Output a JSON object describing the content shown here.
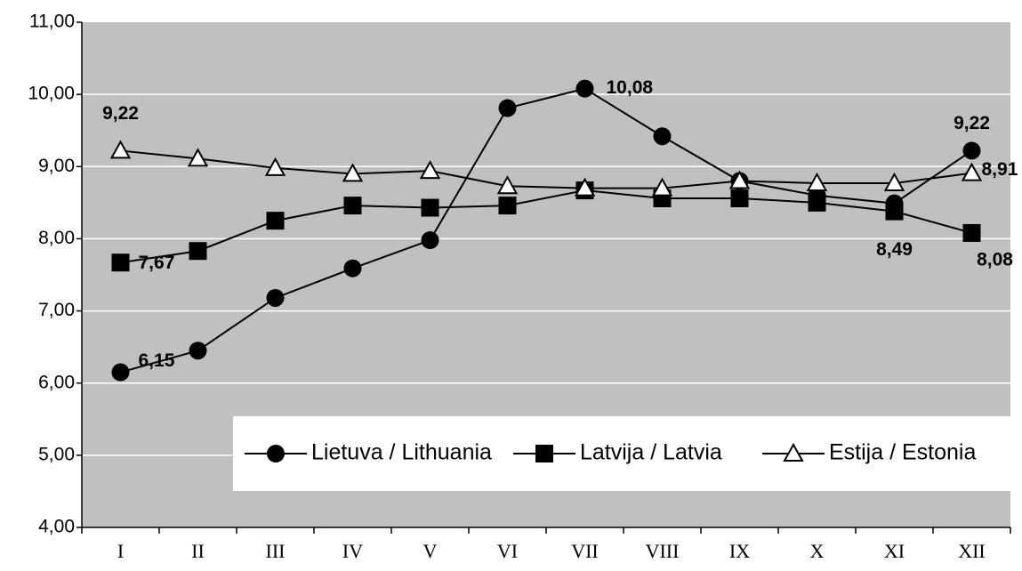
{
  "chart_data": {
    "type": "line",
    "categories": [
      "I",
      "II",
      "III",
      "IV",
      "V",
      "VI",
      "VII",
      "VIII",
      "IX",
      "X",
      "XI",
      "XII"
    ],
    "series": [
      {
        "name": "Lietuva / Lithuania",
        "color": "#000000",
        "marker": "circle",
        "values": [
          6.15,
          6.45,
          7.18,
          7.59,
          7.98,
          9.81,
          10.08,
          9.42,
          8.8,
          8.6,
          8.49,
          9.22
        ],
        "value_labels": [
          "6,15",
          null,
          null,
          null,
          null,
          null,
          "10,08",
          null,
          null,
          null,
          "8,49",
          "9,22"
        ]
      },
      {
        "name": "Latvija / Latvia",
        "color": "#000000",
        "marker": "square",
        "values": [
          7.67,
          7.83,
          8.25,
          8.46,
          8.43,
          8.46,
          8.67,
          8.56,
          8.56,
          8.5,
          8.38,
          8.08
        ],
        "value_labels": [
          "7,67",
          null,
          null,
          null,
          null,
          null,
          null,
          null,
          null,
          null,
          null,
          "8,08"
        ]
      },
      {
        "name": "Estija / Estonia",
        "color": "#000000",
        "marker": "triangle",
        "values": [
          9.22,
          9.11,
          8.98,
          8.9,
          8.94,
          8.73,
          8.7,
          8.7,
          8.8,
          8.77,
          8.77,
          8.91
        ],
        "value_labels": [
          "9,22",
          null,
          null,
          null,
          null,
          null,
          null,
          null,
          null,
          null,
          null,
          "8,91"
        ]
      }
    ],
    "ylim": [
      4,
      11
    ],
    "yticks": [
      {
        "value": 4,
        "label": "4,00"
      },
      {
        "value": 5,
        "label": "5,00"
      },
      {
        "value": 6,
        "label": "6,00"
      },
      {
        "value": 7,
        "label": "7,00"
      },
      {
        "value": 8,
        "label": "8,00"
      },
      {
        "value": 9,
        "label": "9,00"
      },
      {
        "value": 10,
        "label": "10,00"
      },
      {
        "value": 11,
        "label": "11,00"
      }
    ],
    "grid": true,
    "legend": "bottom-right"
  }
}
